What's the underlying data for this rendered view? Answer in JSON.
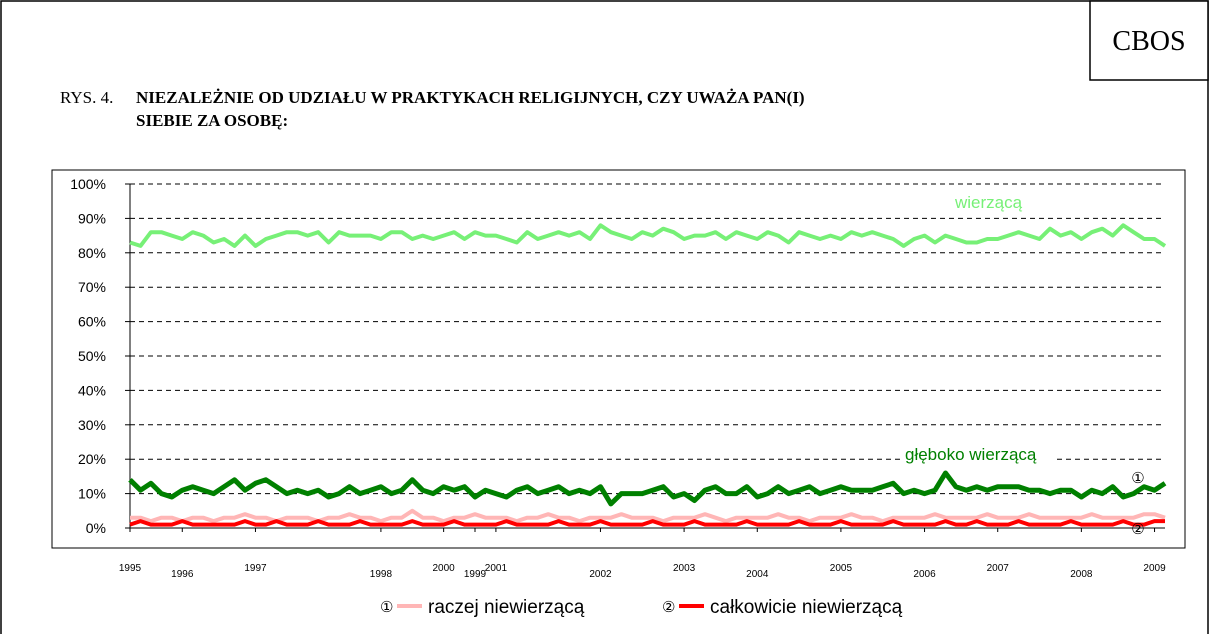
{
  "brand": "CBOS",
  "figure_label": "RYS. 4.",
  "chart_data": {
    "type": "line",
    "title_lines": [
      "NIEZALEŻNIE OD UDZIAŁU W PRAKTYKACH RELIGIJNYCH, CZY UWAŻA PAN(I)",
      "SIEBIE ZA OSOBĘ:"
    ],
    "categories": [
      "1995",
      null,
      null,
      null,
      null,
      "1996",
      null,
      null,
      null,
      null,
      null,
      null,
      "1997",
      null,
      null,
      null,
      null,
      null,
      null,
      null,
      null,
      null,
      null,
      null,
      "1998",
      null,
      null,
      null,
      null,
      null,
      "2000",
      null,
      null,
      "1999",
      null,
      "2001",
      null,
      null,
      null,
      null,
      null,
      null,
      null,
      null,
      null,
      "2002",
      null,
      null,
      null,
      null,
      null,
      null,
      null,
      "2003",
      null,
      null,
      null,
      null,
      null,
      null,
      "2004",
      null,
      null,
      null,
      null,
      null,
      null,
      null,
      "2005",
      null,
      null,
      null,
      null,
      null,
      null,
      null,
      "2006",
      null,
      null,
      null,
      null,
      null,
      null,
      "2007",
      null,
      null,
      null,
      null,
      null,
      null,
      null,
      "2008",
      null,
      null,
      null,
      null,
      null,
      null,
      "2009",
      null
    ],
    "ylim": [
      0,
      100
    ],
    "yticks": [
      {
        "value": 0,
        "label": "0%"
      },
      {
        "value": 10,
        "label": "10%"
      },
      {
        "value": 20,
        "label": "20%"
      },
      {
        "value": 30,
        "label": "30%"
      },
      {
        "value": 40,
        "label": "40%"
      },
      {
        "value": 50,
        "label": "50%"
      },
      {
        "value": 60,
        "label": "60%"
      },
      {
        "value": 70,
        "label": "70%"
      },
      {
        "value": 80,
        "label": "80%"
      },
      {
        "value": 90,
        "label": "90%"
      },
      {
        "value": 100,
        "label": "100%"
      }
    ],
    "grid": true,
    "series": [
      {
        "name": "wierzącą",
        "color": "#77f077",
        "values": [
          83,
          82,
          86,
          86,
          85,
          84,
          86,
          85,
          83,
          84,
          82,
          85,
          82,
          84,
          85,
          86,
          86,
          85,
          86,
          83,
          86,
          85,
          85,
          85,
          84,
          86,
          86,
          84,
          85,
          84,
          85,
          86,
          84,
          86,
          85,
          85,
          84,
          83,
          86,
          84,
          85,
          86,
          85,
          86,
          84,
          88,
          86,
          85,
          84,
          86,
          85,
          87,
          86,
          84,
          85,
          85,
          86,
          84,
          86,
          85,
          84,
          86,
          85,
          83,
          86,
          85,
          84,
          85,
          84,
          86,
          85,
          86,
          85,
          84,
          82,
          84,
          85,
          83,
          85,
          84,
          83,
          83,
          84,
          84,
          85,
          86,
          85,
          84,
          87,
          85,
          86,
          84,
          86,
          87,
          85,
          88,
          86,
          84,
          84,
          82
        ]
      },
      {
        "name": "głęboko wierzącą",
        "color": "#008000",
        "values": [
          14,
          11,
          13,
          10,
          9,
          11,
          12,
          11,
          10,
          12,
          14,
          11,
          13,
          14,
          12,
          10,
          11,
          10,
          11,
          9,
          10,
          12,
          10,
          11,
          12,
          10,
          11,
          14,
          11,
          10,
          12,
          11,
          12,
          9,
          11,
          10,
          9,
          11,
          12,
          10,
          11,
          12,
          10,
          11,
          10,
          12,
          7,
          10,
          10,
          10,
          11,
          12,
          9,
          10,
          8,
          11,
          12,
          10,
          10,
          12,
          9,
          10,
          12,
          10,
          11,
          12,
          10,
          11,
          12,
          11,
          11,
          11,
          12,
          13,
          10,
          11,
          10,
          11,
          16,
          12,
          11,
          12,
          11,
          12,
          12,
          12,
          11,
          11,
          10,
          11,
          11,
          9,
          11,
          10,
          12,
          9,
          10,
          12,
          11,
          13
        ]
      },
      {
        "name": "raczej niewierzącą",
        "marker": "①",
        "color": "#ffb6b6",
        "values": [
          3,
          3,
          2,
          3,
          3,
          2,
          3,
          3,
          2,
          3,
          3,
          4,
          3,
          3,
          2,
          3,
          3,
          3,
          2,
          3,
          3,
          4,
          3,
          3,
          2,
          3,
          3,
          5,
          3,
          3,
          2,
          3,
          3,
          4,
          3,
          3,
          3,
          2,
          3,
          3,
          4,
          3,
          3,
          2,
          3,
          3,
          3,
          4,
          3,
          3,
          3,
          2,
          3,
          3,
          3,
          4,
          3,
          2,
          3,
          3,
          3,
          3,
          4,
          3,
          3,
          2,
          3,
          3,
          3,
          4,
          3,
          3,
          2,
          3,
          3,
          3,
          3,
          4,
          3,
          3,
          3,
          3,
          4,
          3,
          3,
          3,
          4,
          3,
          3,
          3,
          3,
          3,
          4,
          3,
          3,
          3,
          3,
          4,
          4,
          3
        ]
      },
      {
        "name": "całkowicie niewierzącą",
        "marker": "②",
        "color": "#ff0000",
        "values": [
          1,
          2,
          1,
          1,
          1,
          2,
          1,
          1,
          1,
          1,
          1,
          2,
          1,
          1,
          2,
          1,
          1,
          1,
          2,
          1,
          1,
          1,
          2,
          1,
          1,
          1,
          1,
          2,
          1,
          1,
          1,
          2,
          1,
          1,
          1,
          1,
          2,
          1,
          1,
          1,
          1,
          2,
          1,
          1,
          1,
          2,
          1,
          1,
          1,
          1,
          2,
          1,
          1,
          1,
          2,
          1,
          1,
          1,
          1,
          2,
          1,
          1,
          1,
          1,
          2,
          1,
          1,
          1,
          2,
          1,
          1,
          1,
          1,
          2,
          1,
          1,
          1,
          1,
          2,
          1,
          1,
          2,
          1,
          1,
          1,
          2,
          1,
          1,
          1,
          1,
          2,
          1,
          1,
          1,
          1,
          2,
          1,
          1,
          2,
          2
        ]
      }
    ]
  }
}
